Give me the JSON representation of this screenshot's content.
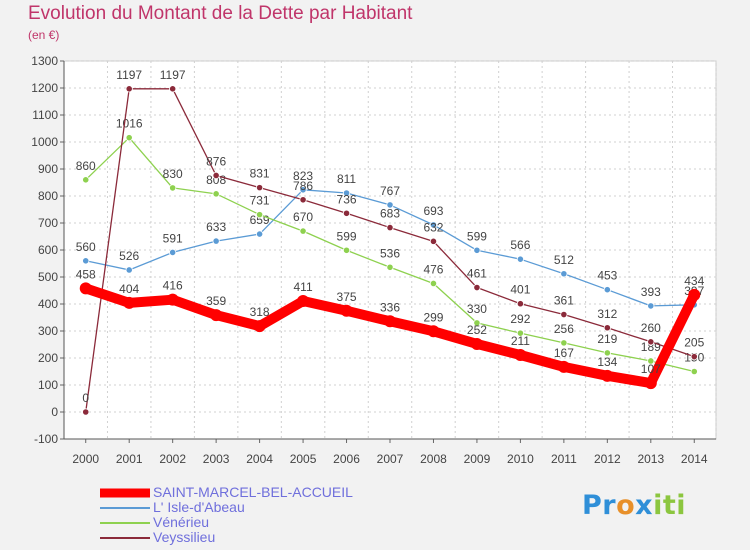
{
  "title": "Evolution du Montant de la Dette par Habitant",
  "subtitle": "(en €)",
  "logo": {
    "parts": [
      "Pr",
      "o",
      "x",
      "iti"
    ]
  },
  "chart_data": {
    "type": "line",
    "x": [
      "2000",
      "2001",
      "2002",
      "2003",
      "2004",
      "2005",
      "2006",
      "2007",
      "2008",
      "2009",
      "2010",
      "2011",
      "2012",
      "2013",
      "2014"
    ],
    "ylim": [
      -100,
      1300
    ],
    "yticks": [
      "1300",
      "1200",
      "1100",
      "1000",
      "900",
      "800",
      "700",
      "600",
      "500",
      "400",
      "300",
      "200",
      "100",
      "0",
      "-100"
    ],
    "grid": true,
    "legend": "bottom-left",
    "series": [
      {
        "name": "L' Isle-d'Abeau",
        "color": "#5b9bd5",
        "values": [
          560,
          526,
          591,
          633,
          659,
          823,
          811,
          767,
          693,
          599,
          566,
          512,
          453,
          393,
          397
        ],
        "labels": [
          "560",
          "526",
          "591",
          "633",
          "659",
          "823",
          "811",
          "767",
          "693",
          "599",
          "566",
          "512",
          "453",
          "393",
          "397"
        ]
      },
      {
        "name": "Vénérieu",
        "color": "#8ed14f",
        "values": [
          860,
          1016,
          830,
          808,
          731,
          670,
          599,
          536,
          476,
          330,
          292,
          256,
          219,
          189,
          150
        ],
        "labels": [
          "860",
          "1016",
          "830",
          "808",
          "731",
          "670",
          "599",
          "536",
          "476",
          "330",
          "292",
          "256",
          "219",
          "189",
          "150"
        ]
      },
      {
        "name": "Veyssilieu",
        "color": "#8b2a3a",
        "values": [
          0,
          1197,
          1197,
          876,
          831,
          786,
          736,
          683,
          632,
          461,
          401,
          361,
          312,
          260,
          205
        ],
        "labels": [
          "0",
          "1197",
          "1197",
          "876",
          "831",
          "786",
          "736",
          "683",
          "632",
          "461",
          "401",
          "361",
          "312",
          "260",
          "205"
        ]
      },
      {
        "name": "SAINT-MARCEL-BEL-ACCUEIL",
        "color": "#ff0000",
        "values": [
          458,
          404,
          416,
          359,
          318,
          411,
          375,
          336,
          299,
          252,
          211,
          167,
          134,
          107,
          434
        ],
        "labels": [
          "458",
          "404",
          "416",
          "359",
          "318",
          "411",
          "375",
          "336",
          "299",
          "252",
          "211",
          "167",
          "134",
          "107",
          "434"
        ]
      }
    ]
  }
}
